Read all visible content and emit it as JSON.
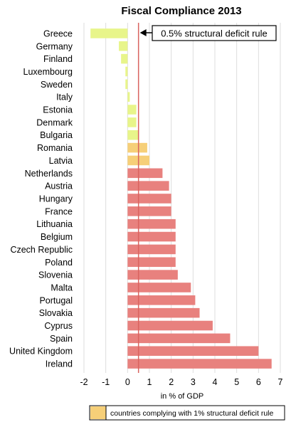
{
  "chart_data": {
    "type": "bar",
    "orientation": "horizontal",
    "title": "Fiscal Compliance 2013",
    "xlabel": "in % of GDP",
    "xlim": [
      -2,
      7
    ],
    "xticks": [
      "-2",
      "-1",
      "0",
      "1",
      "2",
      "3",
      "4",
      "5",
      "6",
      "7"
    ],
    "grid": true,
    "categories": [
      "Greece",
      "Germany",
      "Finland",
      "Luxembourg",
      "Sweden",
      "Italy",
      "Estonia",
      "Denmark",
      "Bulgaria",
      "Romania",
      "Latvia",
      "Netherlands",
      "Austria",
      "Hungary",
      "France",
      "Lithuania",
      "Belgium",
      "Czech Republic",
      "Poland",
      "Slovenia",
      "Malta",
      "Portugal",
      "Slovakia",
      "Cyprus",
      "Spain",
      "United Kingdom",
      "Ireland"
    ],
    "values": [
      -1.7,
      -0.4,
      -0.3,
      -0.1,
      -0.1,
      0.1,
      0.4,
      0.4,
      0.5,
      0.9,
      1.0,
      1.6,
      1.9,
      2.0,
      2.0,
      2.2,
      2.2,
      2.2,
      2.2,
      2.3,
      2.9,
      3.1,
      3.3,
      3.9,
      4.7,
      6.0,
      6.6
    ],
    "groups": [
      "green",
      "green",
      "green",
      "green",
      "green",
      "green",
      "green",
      "green",
      "green",
      "orange",
      "orange",
      "red",
      "red",
      "red",
      "red",
      "red",
      "red",
      "red",
      "red",
      "red",
      "red",
      "red",
      "red",
      "red",
      "red",
      "red",
      "red"
    ],
    "colors": {
      "green": "#e8f58a",
      "orange": "#f6cf78",
      "red": "#e8817e",
      "rule_line": "#d9635f"
    },
    "reference_line": {
      "x": 0.5,
      "label": "0.5% structural deficit rule"
    },
    "legend": {
      "label": "countries complying with 1% structural deficit rule",
      "color": "#f6cf78",
      "placement": "bottom"
    }
  }
}
